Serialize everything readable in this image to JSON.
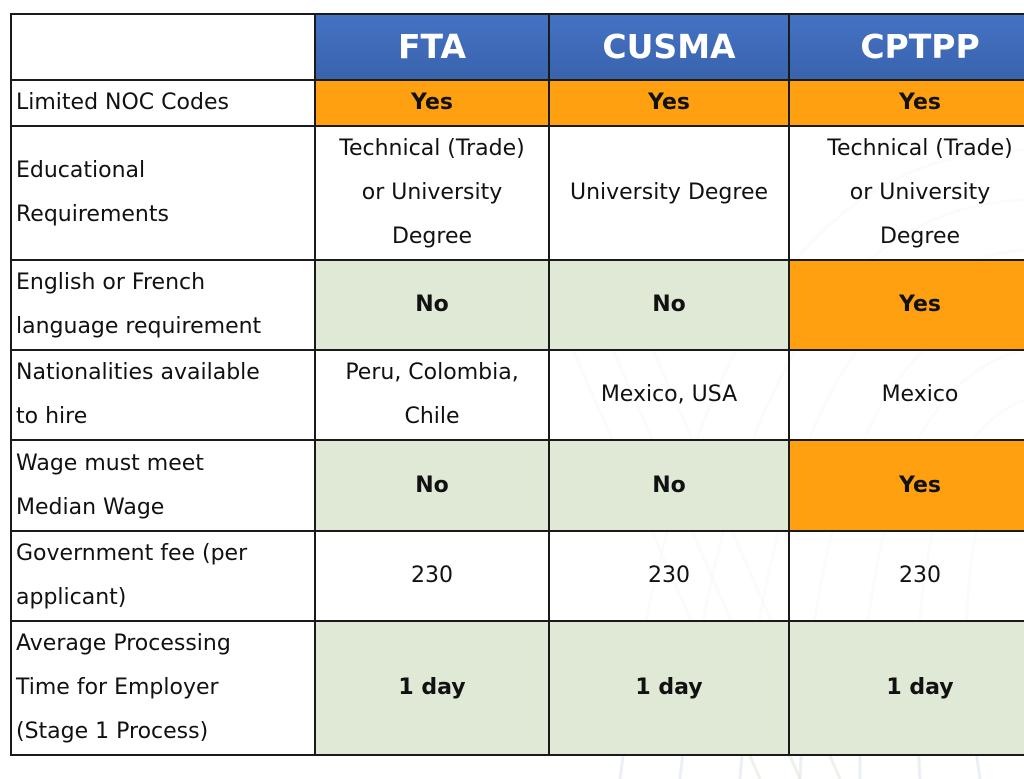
{
  "table": {
    "columns": [
      "FTA",
      "CUSMA",
      "CPTPP"
    ],
    "rows": [
      {
        "label": [
          "Limited NOC Codes"
        ],
        "cells": [
          [
            "Yes"
          ],
          [
            "Yes"
          ],
          [
            "Yes"
          ]
        ]
      },
      {
        "label": [
          "Educational",
          "Requirements"
        ],
        "cells": [
          [
            "Technical (Trade)",
            "or University",
            "Degree"
          ],
          [
            "University Degree"
          ],
          [
            "Technical (Trade)",
            "or University",
            "Degree"
          ]
        ]
      },
      {
        "label": [
          "English or French",
          "language requirement"
        ],
        "cells": [
          [
            "No"
          ],
          [
            "No"
          ],
          [
            "Yes"
          ]
        ]
      },
      {
        "label": [
          "Nationalities available",
          "to hire"
        ],
        "cells": [
          [
            "Peru, Colombia,",
            "Chile"
          ],
          [
            "Mexico, USA"
          ],
          [
            "Mexico"
          ]
        ]
      },
      {
        "label": [
          "Wage must meet",
          "Median Wage"
        ],
        "cells": [
          [
            "No"
          ],
          [
            "No"
          ],
          [
            "Yes"
          ]
        ]
      },
      {
        "label": [
          "Government fee (per",
          "applicant)"
        ],
        "cells": [
          [
            "230"
          ],
          [
            "230"
          ],
          [
            "230"
          ]
        ]
      },
      {
        "label": [
          "Average Processing",
          "Time for Employer",
          "(Stage 1 Process)"
        ],
        "cells": [
          [
            "1 day"
          ],
          [
            "1 day"
          ],
          [
            "1 day"
          ]
        ]
      }
    ]
  },
  "colors": {
    "header_blue": "#4472c4",
    "highlight_orange": "#ffa010",
    "highlight_green": "#dfe9d6",
    "border": "#1a1a1a"
  }
}
